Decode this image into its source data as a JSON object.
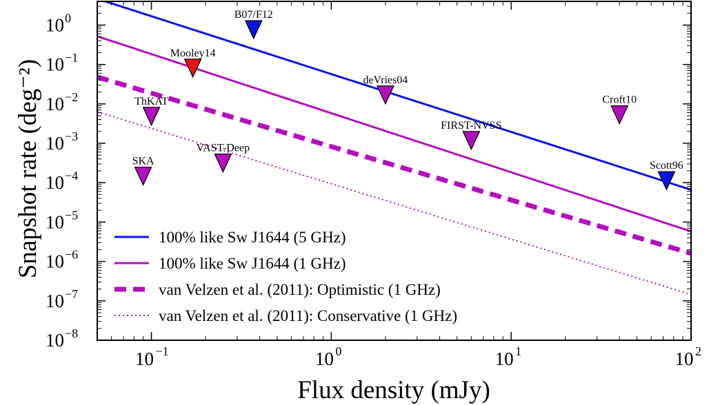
{
  "chart_data": {
    "type": "line",
    "xlabel": "Flux density (mJy)",
    "ylabel": "Snapshot rate (deg⁻²)",
    "xscale": "log",
    "yscale": "log",
    "xlim": [
      0.05,
      100
    ],
    "ylim": [
      1e-08,
      4
    ],
    "x_ticks": [
      {
        "value": 0.1,
        "label": "10",
        "exp": "−1"
      },
      {
        "value": 1,
        "label": "10",
        "exp": "0"
      },
      {
        "value": 10,
        "label": "10",
        "exp": "1"
      },
      {
        "value": 100,
        "label": "10",
        "exp": "2"
      }
    ],
    "y_ticks": [
      {
        "value": 1e-08,
        "label": "10",
        "exp": "−8"
      },
      {
        "value": 1e-07,
        "label": "10",
        "exp": "−7"
      },
      {
        "value": 1e-06,
        "label": "10",
        "exp": "−6"
      },
      {
        "value": 1e-05,
        "label": "10",
        "exp": "−5"
      },
      {
        "value": 0.0001,
        "label": "10",
        "exp": "−4"
      },
      {
        "value": 0.001,
        "label": "10",
        "exp": "−3"
      },
      {
        "value": 0.01,
        "label": "10",
        "exp": "−2"
      },
      {
        "value": 0.1,
        "label": "10",
        "exp": "−1"
      },
      {
        "value": 1,
        "label": "10",
        "exp": "0"
      }
    ],
    "grid": false,
    "legend_position": "lower-left",
    "series": [
      {
        "name": "100% like Sw J1644 (5 GHz)",
        "color": "#0a14e6",
        "style": "solid",
        "x": [
          0.05,
          100
        ],
        "y": [
          4.65,
          6.6e-05
        ]
      },
      {
        "name": "100% like Sw J1644 (1 GHz)",
        "color": "#b40fbe",
        "style": "solid",
        "x": [
          0.05,
          100
        ],
        "y": [
          0.52,
          5.8e-06
        ]
      },
      {
        "name": "van Velzen et al. (2011): Optimistic (1 GHz)",
        "color": "#b40fbe",
        "style": "dashed",
        "x": [
          0.05,
          100
        ],
        "y": [
          0.048,
          1.6e-06
        ]
      },
      {
        "name": "van Velzen et al. (2011): Conservative (1 GHz)",
        "color": "#b40fbe",
        "style": "dotted",
        "x": [
          0.05,
          100
        ],
        "y": [
          0.0063,
          1.45e-07
        ]
      }
    ],
    "upper_limits": [
      {
        "label": "B07/F12",
        "x": 0.37,
        "y": 0.68,
        "color": "#0a14e6"
      },
      {
        "label": "Mooley14",
        "x": 0.17,
        "y": 0.072,
        "color": "#e61414"
      },
      {
        "label": "deVries04",
        "x": 2.0,
        "y": 0.015,
        "color": "#b40fbe"
      },
      {
        "label": "ThKAT",
        "x": 0.1,
        "y": 0.0043,
        "color": "#b40fbe"
      },
      {
        "label": "Croft10",
        "x": 40,
        "y": 0.0047,
        "color": "#b40fbe"
      },
      {
        "label": "FIRST-NVSS",
        "x": 6.0,
        "y": 0.00105,
        "color": "#b40fbe"
      },
      {
        "label": "VAST-Deep",
        "x": 0.25,
        "y": 0.00028,
        "color": "#b40fbe"
      },
      {
        "label": "SKA",
        "x": 0.09,
        "y": 0.00013,
        "color": "#b40fbe"
      },
      {
        "label": "Scott96",
        "x": 73,
        "y": 0.0001,
        "color": "#0a14e6"
      }
    ]
  }
}
